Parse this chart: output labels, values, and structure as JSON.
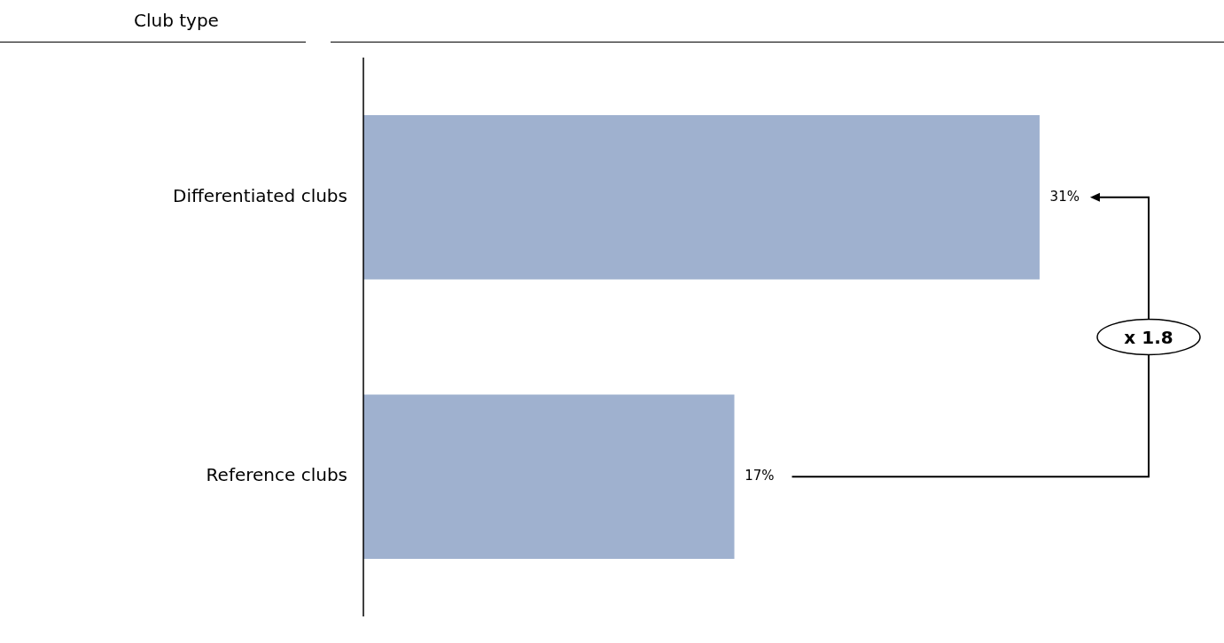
{
  "chart_data": {
    "type": "bar",
    "orientation": "horizontal",
    "ylabel": "Club type",
    "categories": [
      "Differentiated clubs",
      "Reference clubs"
    ],
    "values": [
      31,
      17
    ],
    "color": "#9fb1cf",
    "value_labels": [
      "31%",
      "17%"
    ],
    "annotations": [
      "x 1.8"
    ],
    "grid": false,
    "legend": false
  }
}
